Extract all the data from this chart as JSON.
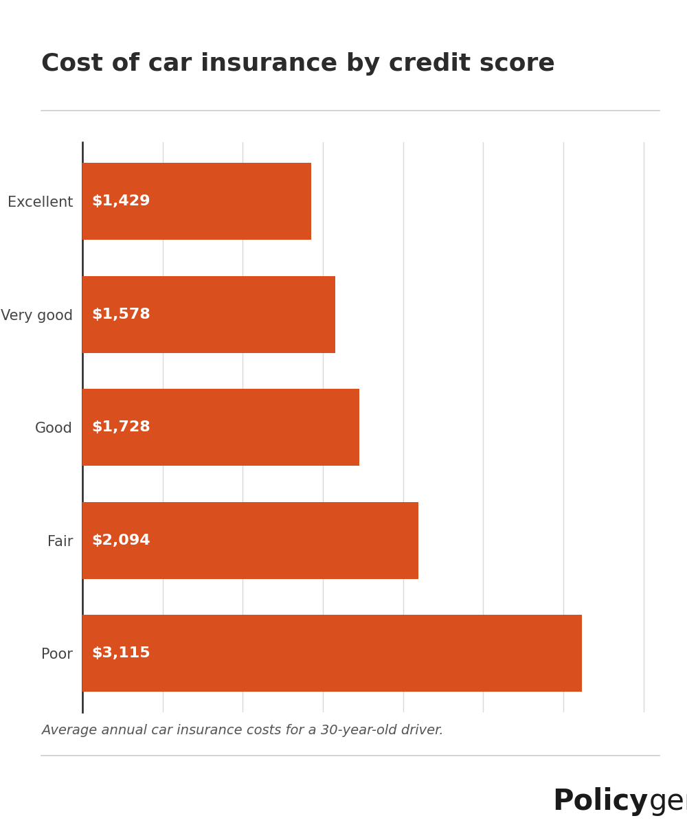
{
  "title": "Cost of car insurance by credit score",
  "categories": [
    "Excellent",
    "Very good",
    "Good",
    "Fair",
    "Poor"
  ],
  "values": [
    1429,
    1578,
    1728,
    2094,
    3115
  ],
  "labels": [
    "$1,429",
    "$1,578",
    "$1,728",
    "$2,094",
    "$3,115"
  ],
  "bar_color": "#d94f1e",
  "background_color": "#ffffff",
  "title_fontsize": 26,
  "label_fontsize": 16,
  "ytick_fontsize": 15,
  "footnote": "Average annual car insurance costs for a 30-year-old driver.",
  "footnote_fontsize": 14,
  "xlim": [
    0,
    3600
  ],
  "grid_color": "#d8d8d8",
  "title_color": "#2b2b2b",
  "label_color": "#ffffff",
  "ytick_color": "#444444",
  "footnote_color": "#555555",
  "logo_fontsize": 30,
  "separator_color": "#cccccc"
}
